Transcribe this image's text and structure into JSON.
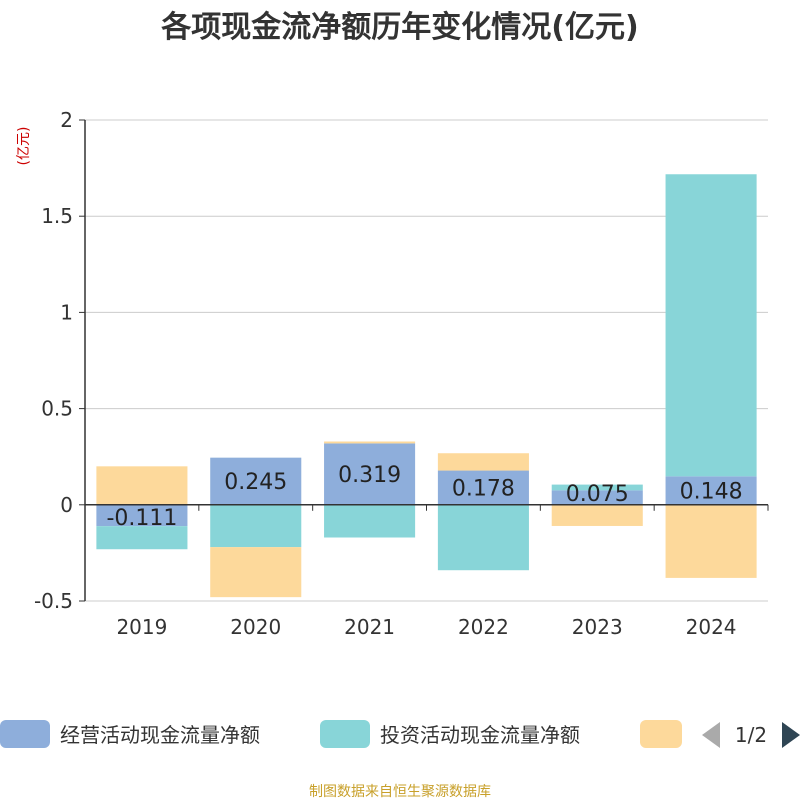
{
  "chart_data": {
    "type": "bar",
    "stacked": true,
    "title": "各项现金流净额历年变化情况(亿元)",
    "unit_label": "(亿元)",
    "categories": [
      "2019",
      "2020",
      "2021",
      "2022",
      "2023",
      "2024"
    ],
    "ylim": [
      -0.5,
      2
    ],
    "yticks": [
      "2",
      "1.5",
      "1",
      "0.5",
      "0",
      "-0.5"
    ],
    "ytick_values": [
      2,
      1.5,
      1,
      0.5,
      0,
      -0.5
    ],
    "grid": true,
    "legend_position": "bottom",
    "series": [
      {
        "name": "经营活动现金流量净额",
        "color": "#8eaedb",
        "values": [
          -0.111,
          0.245,
          0.319,
          0.178,
          0.075,
          0.148
        ],
        "labels": [
          "-0.111",
          "0.245",
          "0.319",
          "0.178",
          "0.075",
          "0.148"
        ]
      },
      {
        "name": "投资活动现金流量净额",
        "color": "#88d5d8",
        "values": [
          -0.12,
          -0.22,
          -0.17,
          -0.34,
          0.03,
          1.57
        ]
      },
      {
        "name": "",
        "color": "#fdd99b",
        "values": [
          0.2,
          -0.26,
          0.01,
          0.09,
          -0.11,
          -0.38
        ]
      }
    ]
  },
  "legend": {
    "pager": "1/2"
  },
  "footer": {
    "source": "制图数据来自恒生聚源数据库"
  }
}
